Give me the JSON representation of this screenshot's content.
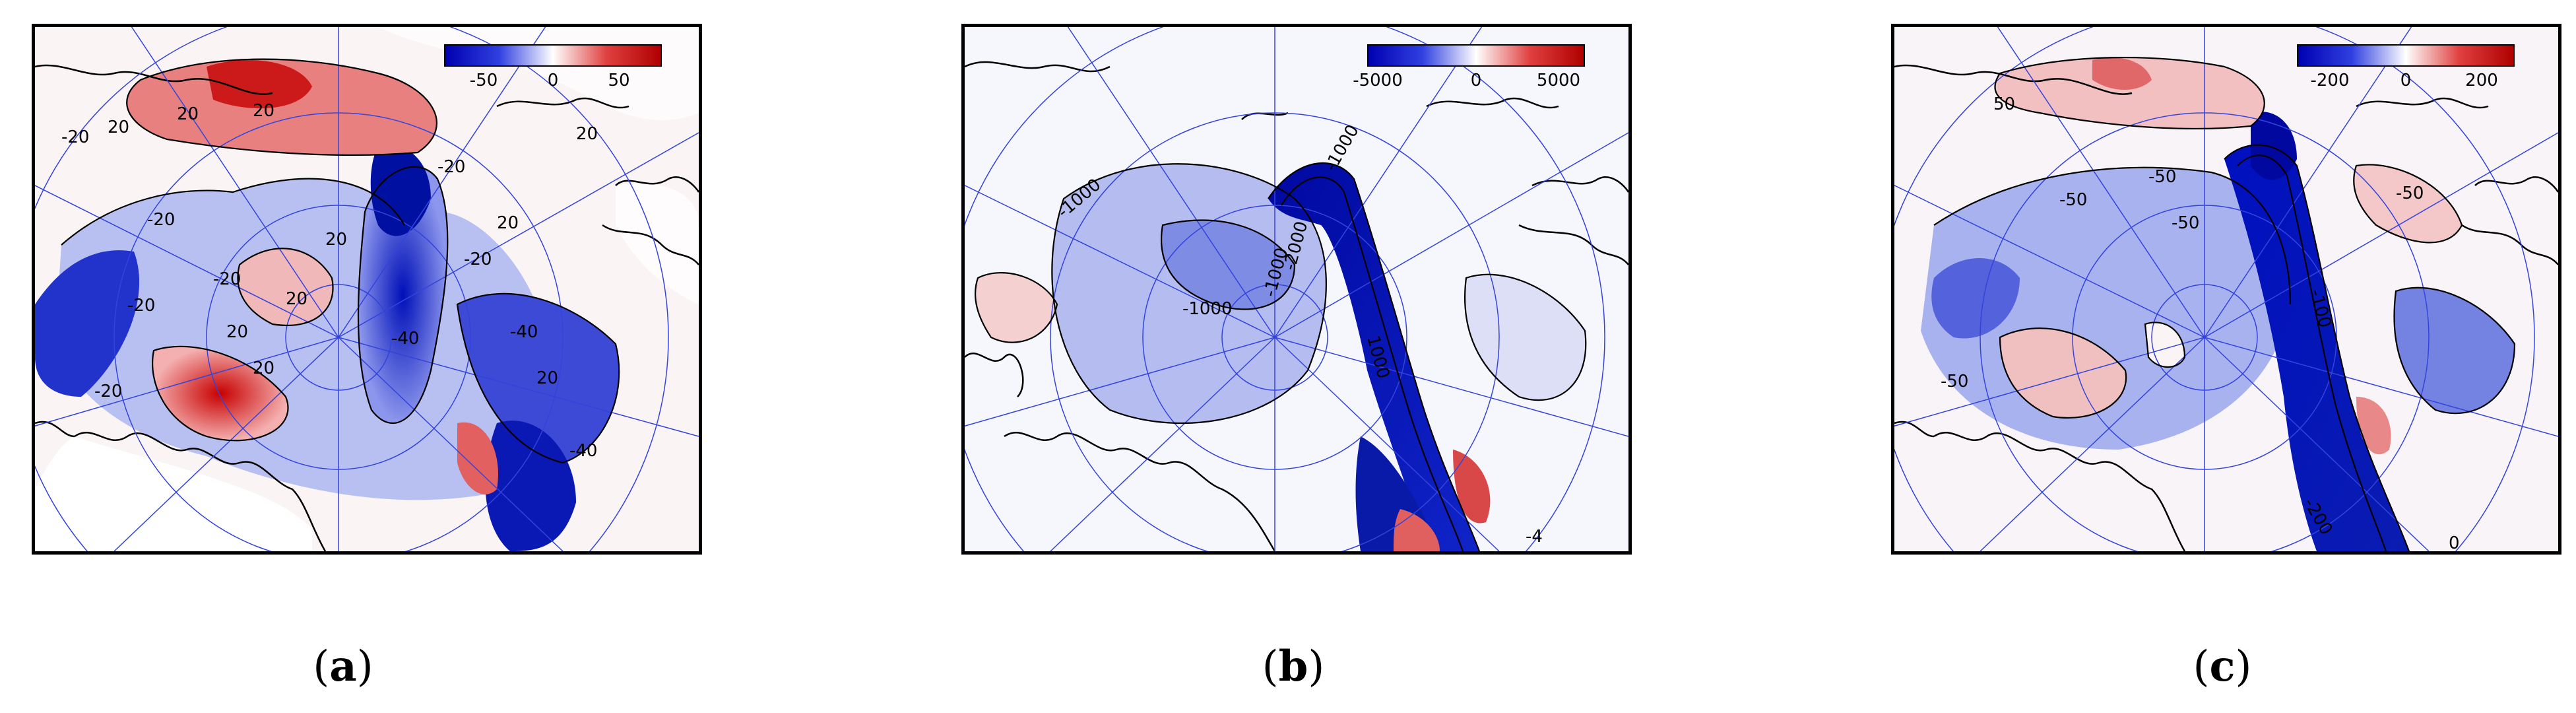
{
  "panels": [
    {
      "id": "a",
      "caption": "a",
      "colorbar_ticks": [
        "-50",
        "0",
        "50"
      ],
      "contour_labels": [
        "20",
        "-20",
        "20",
        "20",
        "-20",
        "20",
        "-20",
        "20",
        "20",
        "-20",
        "20",
        "-40",
        "-40",
        "20",
        "-20",
        "-40",
        "20",
        "-20",
        "-20",
        "20"
      ]
    },
    {
      "id": "b",
      "caption": "b",
      "colorbar_ticks": [
        "-5000",
        "0",
        "5000"
      ],
      "contour_labels": [
        "-1000",
        "-2000",
        "-1000",
        "-1000",
        "-1000",
        "1000",
        "-4"
      ]
    },
    {
      "id": "c",
      "caption": "c",
      "colorbar_ticks": [
        "-200",
        "0",
        "200"
      ],
      "contour_labels": [
        "50",
        "-50",
        "-50",
        "-50",
        "-50",
        "-50",
        "-100",
        "0",
        "-200"
      ]
    }
  ],
  "colors": {
    "negative": "#0010c8",
    "zero": "#ffffff",
    "positive": "#d00000",
    "graticule": "#3344dd",
    "coast": "#000000"
  }
}
